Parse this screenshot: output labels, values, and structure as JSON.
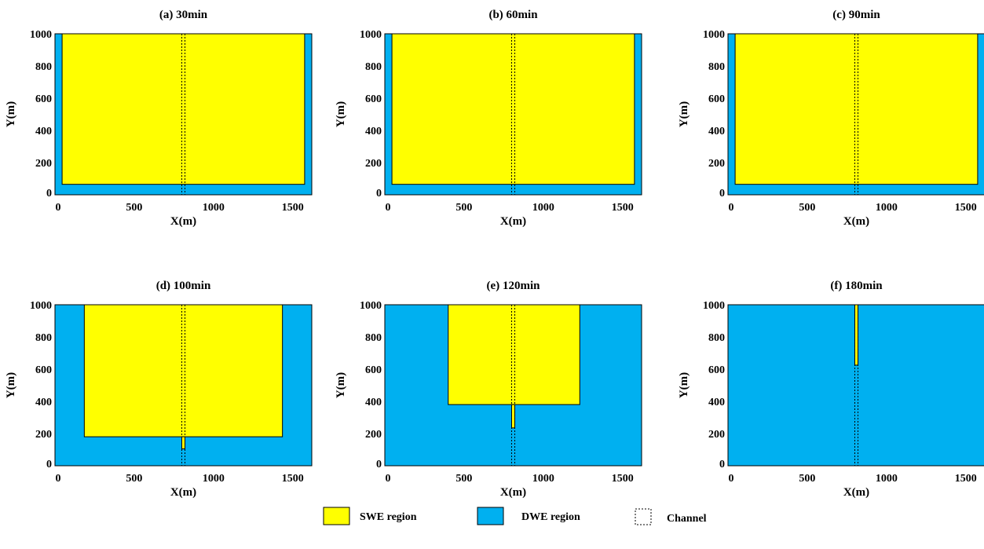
{
  "colors": {
    "swe": "#FFFF00",
    "dwe": "#00B0F0",
    "outline": "#000000",
    "background": "#FFFFFF"
  },
  "legend": {
    "swe_label": "SWE region",
    "dwe_label": "DWE region",
    "channel_label": "Channel"
  },
  "chart_data": [
    {
      "type": "region-map",
      "title": "(a) 30min",
      "xlabel": "X(m)",
      "ylabel": "Y(m)",
      "xlim": [
        0,
        1620
      ],
      "ylim": [
        0,
        1000
      ],
      "xticks": [
        0,
        500,
        1000,
        1500
      ],
      "yticks": [
        0,
        200,
        400,
        600,
        800,
        1000
      ],
      "channel": {
        "x": [
          800,
          820
        ]
      },
      "swe_regions": [
        {
          "x": [
            45,
            1575
          ],
          "y": [
            65,
            1000
          ]
        }
      ]
    },
    {
      "type": "region-map",
      "title": "(b) 60min",
      "xlabel": "X(m)",
      "ylabel": "Y(m)",
      "xlim": [
        0,
        1620
      ],
      "ylim": [
        0,
        1000
      ],
      "xticks": [
        0,
        500,
        1000,
        1500
      ],
      "yticks": [
        0,
        200,
        400,
        600,
        800,
        1000
      ],
      "channel": {
        "x": [
          800,
          820
        ]
      },
      "swe_regions": [
        {
          "x": [
            45,
            1575
          ],
          "y": [
            65,
            1000
          ]
        }
      ]
    },
    {
      "type": "region-map",
      "title": "(c) 90min",
      "xlabel": "X(m)",
      "ylabel": "Y(m)",
      "xlim": [
        0,
        1620
      ],
      "ylim": [
        0,
        1000
      ],
      "xticks": [
        0,
        500,
        1000,
        1500
      ],
      "yticks": [
        0,
        200,
        400,
        600,
        800,
        1000
      ],
      "channel": {
        "x": [
          800,
          820
        ]
      },
      "swe_regions": [
        {
          "x": [
            45,
            1575
          ],
          "y": [
            65,
            1000
          ]
        }
      ]
    },
    {
      "type": "region-map",
      "title": "(d) 100min",
      "xlabel": "X(m)",
      "ylabel": "Y(m)",
      "xlim": [
        0,
        1620
      ],
      "ylim": [
        0,
        1000
      ],
      "xticks": [
        0,
        500,
        1000,
        1500
      ],
      "yticks": [
        0,
        200,
        400,
        600,
        800,
        1000
      ],
      "channel": {
        "x": [
          800,
          820
        ]
      },
      "swe_regions": [
        {
          "x": [
            185,
            1435
          ],
          "y": [
            180,
            1000
          ]
        },
        {
          "x": [
            800,
            820
          ],
          "y": [
            105,
            180
          ]
        }
      ]
    },
    {
      "type": "region-map",
      "title": "(e) 120min",
      "xlabel": "X(m)",
      "ylabel": "Y(m)",
      "xlim": [
        0,
        1620
      ],
      "ylim": [
        0,
        1000
      ],
      "xticks": [
        0,
        500,
        1000,
        1500
      ],
      "yticks": [
        0,
        200,
        400,
        600,
        800,
        1000
      ],
      "channel": {
        "x": [
          800,
          820
        ]
      },
      "swe_regions": [
        {
          "x": [
            400,
            1230
          ],
          "y": [
            380,
            1000
          ]
        },
        {
          "x": [
            800,
            820
          ],
          "y": [
            235,
            380
          ]
        }
      ]
    },
    {
      "type": "region-map",
      "title": "(f) 180min",
      "xlabel": "X(m)",
      "ylabel": "Y(m)",
      "xlim": [
        0,
        1620
      ],
      "ylim": [
        0,
        1000
      ],
      "xticks": [
        0,
        500,
        1000,
        1500
      ],
      "yticks": [
        0,
        200,
        400,
        600,
        800,
        1000
      ],
      "channel": {
        "x": [
          800,
          820
        ]
      },
      "swe_regions": [
        {
          "x": [
            800,
            820
          ],
          "y": [
            625,
            1000
          ]
        }
      ]
    }
  ]
}
